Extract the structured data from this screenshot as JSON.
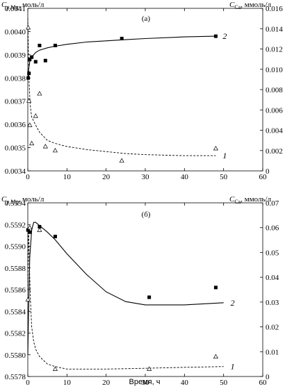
{
  "chart_data": [
    {
      "type": "line",
      "panel_label": "(а)",
      "y_left_label": "Cp,Mg, моль/л",
      "y_right_label": "CCa, ммоль/л",
      "xlim": [
        0,
        60
      ],
      "ylim_left": [
        0.0034,
        0.0041
      ],
      "ylim_right": [
        0,
        0.016
      ],
      "x_ticks": [
        "0",
        "10",
        "20",
        "30",
        "40",
        "50",
        "60"
      ],
      "y_left_ticks": [
        "0.0034",
        "0.0035",
        "0.0036",
        "0.0037",
        "0.0038",
        "0.0039",
        "0.0040",
        "0.0041"
      ],
      "y_right_ticks": [
        "0",
        "0.002",
        "0.004",
        "0.006",
        "0.008",
        "0.010",
        "0.012",
        "0.014",
        "0.016"
      ],
      "series": [
        {
          "name": "2",
          "axis": "left",
          "marker": "square-filled",
          "x": [
            0.1,
            0.3,
            0.5,
            1.0,
            2.0,
            3.0,
            4.5,
            7.0,
            24.0,
            48.0
          ],
          "y": [
            0.0038,
            0.00382,
            0.00388,
            0.00389,
            0.00387,
            0.00394,
            0.003875,
            0.00394,
            0.00397,
            0.00398
          ],
          "fit": {
            "x": [
              0.05,
              0.2,
              0.5,
              1,
              2,
              3,
              5,
              7,
              10,
              15,
              20,
              25,
              30,
              40,
              48
            ],
            "y": [
              0.0038,
              0.003835,
              0.00387,
              0.00389,
              0.00391,
              0.00392,
              0.00393,
              0.003937,
              0.003945,
              0.003955,
              0.00396,
              0.003965,
              0.00397,
              0.003977,
              0.00398
            ]
          }
        },
        {
          "name": "1",
          "axis": "right",
          "marker": "triangle-open",
          "x": [
            0.1,
            0.3,
            0.5,
            1.0,
            2.0,
            3.0,
            4.5,
            7.0,
            24.0,
            48.0
          ],
          "y": [
            0.0141,
            0.0069,
            0.0045,
            0.0027,
            0.0054,
            0.0076,
            0.0024,
            0.002,
            0.001,
            0.0022
          ],
          "fit": {
            "x": [
              0,
              0.15,
              0.3,
              0.6,
              1,
              2,
              3,
              5,
              7,
              10,
              15,
              20,
              25,
              30,
              40,
              48
            ],
            "y": [
              0.015,
              0.012,
              0.009,
              0.0065,
              0.0053,
              0.0045,
              0.0038,
              0.003,
              0.0027,
              0.0024,
              0.0021,
              0.0019,
              0.0017,
              0.0016,
              0.0015,
              0.0015
            ]
          }
        }
      ]
    },
    {
      "type": "line",
      "panel_label": "(б)",
      "y_left_label": "Cp,Mg, моль/л",
      "y_right_label": "CCa, ммоль/л",
      "xlabel": "Время, ч",
      "xlim": [
        0,
        60
      ],
      "ylim_left": [
        0.5578,
        0.5594
      ],
      "ylim_right": [
        0,
        0.07
      ],
      "x_ticks": [
        "0",
        "10",
        "20",
        "30",
        "40",
        "50",
        "60"
      ],
      "y_left_ticks": [
        "0.5578",
        "0.5580",
        "0.5582",
        "0.5584",
        "0.5586",
        "0.5588",
        "0.5590",
        "0.5592",
        "0.5594"
      ],
      "y_right_ticks": [
        "0",
        "0.01",
        "0.02",
        "0.03",
        "0.04",
        "0.05",
        "0.06",
        "0.07"
      ],
      "series": [
        {
          "name": "2",
          "axis": "left",
          "marker": "square-filled",
          "x": [
            0.05,
            0.5,
            3.0,
            7.0,
            31.0,
            48.0
          ],
          "y": [
            0.55915,
            0.55913,
            0.55918,
            0.55909,
            0.55853,
            0.55862
          ],
          "fit": {
            "x": [
              0,
              0.2,
              0.5,
              1,
              1.5,
              2,
              3,
              5,
              7,
              10,
              15,
              20,
              25,
              30,
              40,
              50
            ],
            "y": [
              0.558,
              0.5584,
              0.5589,
              0.55915,
              0.55922,
              0.55922,
              0.55919,
              0.55913,
              0.55906,
              0.55893,
              0.55874,
              0.55858,
              0.55849,
              0.55846,
              0.55846,
              0.55848
            ]
          }
        },
        {
          "name": "1",
          "axis": "right",
          "marker": "triangle-open",
          "x": [
            0.05,
            0.5,
            3.0,
            7.0,
            31.0,
            48.0
          ],
          "y": [
            0.031,
            0.06,
            0.059,
            0.003,
            0.003,
            0.008
          ],
          "fit": {
            "x": [
              0,
              0.2,
              0.4,
              0.7,
              1,
              1.5,
              2,
              3,
              5,
              7,
              10,
              20,
              30,
              40,
              50
            ],
            "y": [
              0.035,
              0.06,
              0.045,
              0.03,
              0.02,
              0.014,
              0.011,
              0.008,
              0.005,
              0.004,
              0.003,
              0.003,
              0.0033,
              0.0037,
              0.004
            ]
          }
        }
      ]
    }
  ]
}
